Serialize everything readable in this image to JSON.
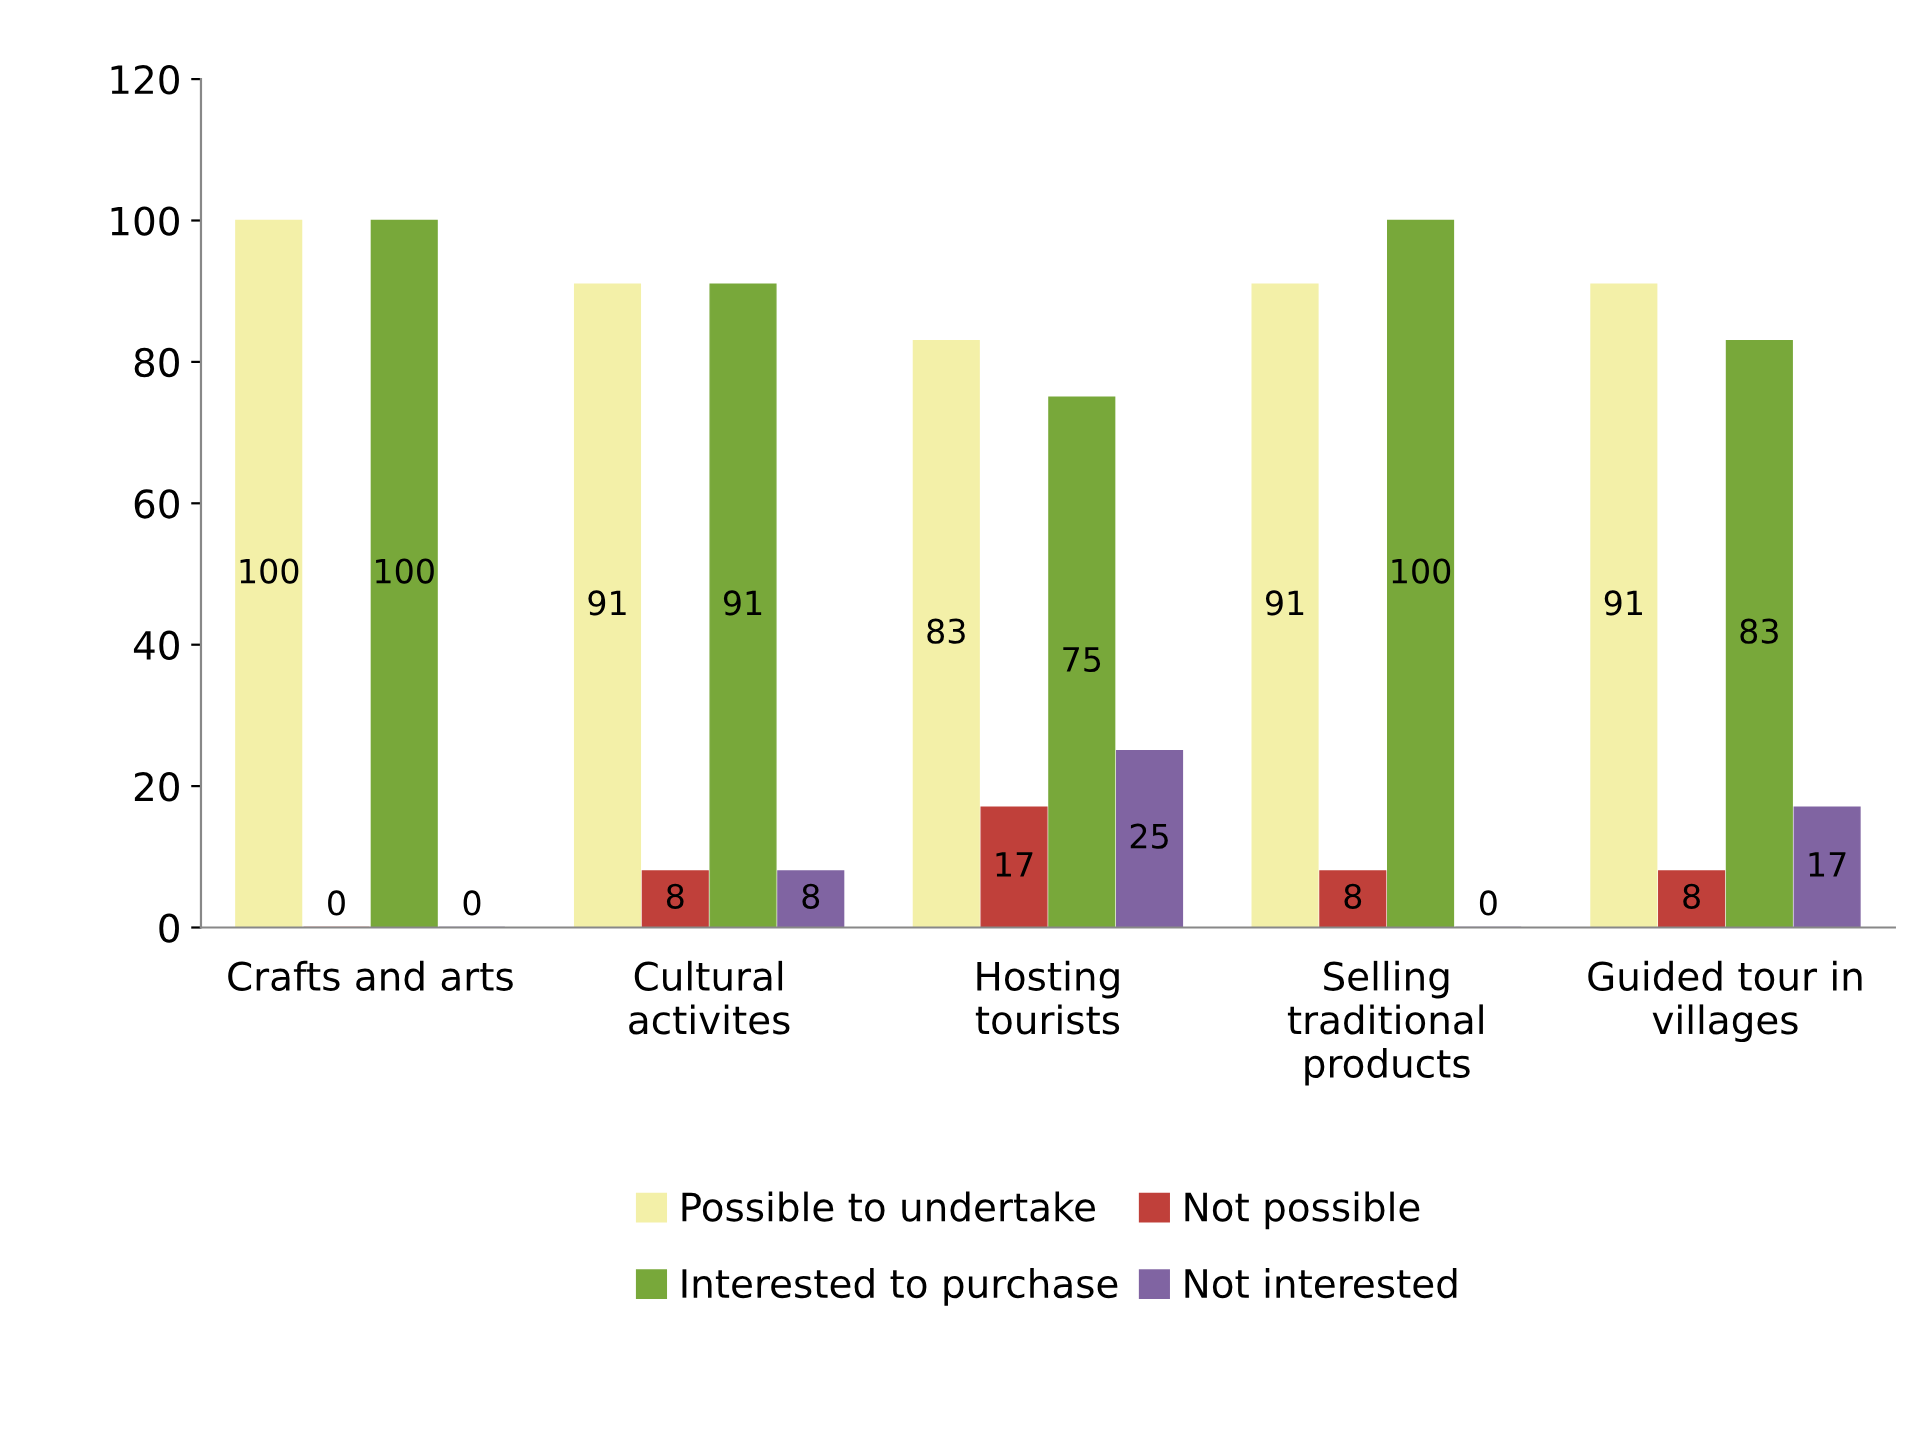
{
  "chart_data": {
    "type": "bar",
    "categories": [
      "Crafts and arts",
      "Cultural activites",
      "Hosting tourists",
      "Selling traditional products",
      "Guided tour in villages"
    ],
    "series": [
      {
        "name": "Possible to undertake",
        "color": "#f3f0a8",
        "values": [
          100,
          91,
          83,
          91,
          91
        ]
      },
      {
        "name": "Not possible",
        "color": "#c0403a",
        "values": [
          0,
          8,
          17,
          8,
          8
        ]
      },
      {
        "name": "Interested to purchase",
        "color": "#78a83a",
        "values": [
          100,
          91,
          75,
          100,
          83
        ]
      },
      {
        "name": "Not interested",
        "color": "#8064a2",
        "values": [
          0,
          8,
          25,
          0,
          17
        ]
      }
    ],
    "ylim": [
      0,
      120
    ],
    "yticks": [
      0,
      20,
      40,
      60,
      80,
      100,
      120
    ],
    "data_labels": true,
    "grid": false,
    "legend": "bottom"
  }
}
